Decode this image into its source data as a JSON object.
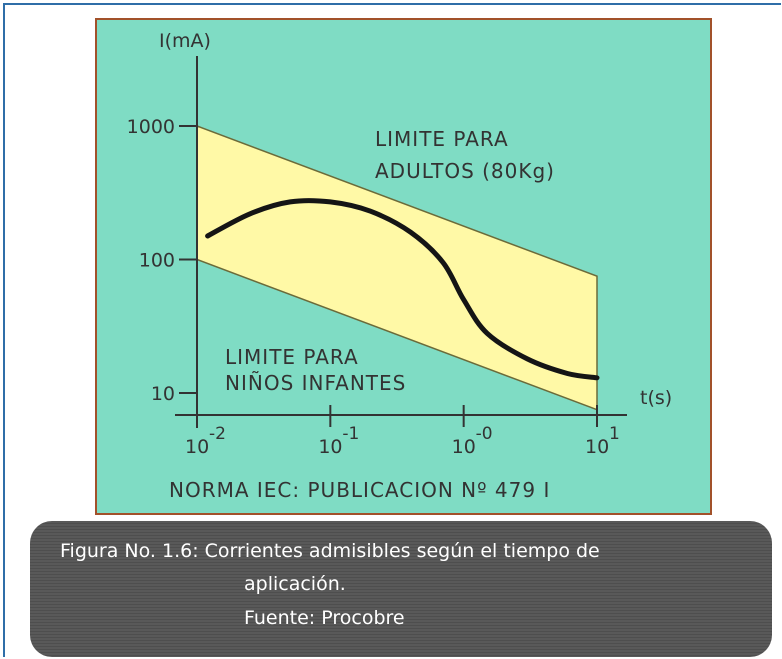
{
  "figure": {
    "caption_line1": "Figura No. 1.6: Corrientes admisibles según el tiempo de",
    "caption_line2": "aplicación.",
    "caption_line3": "Fuente: Procobre"
  },
  "chart_data": {
    "type": "area",
    "title": "",
    "xlabel": "t(s)",
    "ylabel": "I(mA)",
    "x_scale": "log",
    "y_scale": "log",
    "xlim": [
      0.01,
      10
    ],
    "ylim": [
      10,
      1000
    ],
    "x_ticks": [
      {
        "value": 0.01,
        "base": "10",
        "exp": "-2"
      },
      {
        "value": 0.1,
        "base": "10",
        "exp": "-1"
      },
      {
        "value": 1,
        "base": "10",
        "exp": "-0"
      },
      {
        "value": 10,
        "base": "10",
        "exp": "1"
      }
    ],
    "y_ticks": [
      {
        "value": 1000,
        "label": "1000"
      },
      {
        "value": 100,
        "label": "100"
      },
      {
        "value": 10,
        "label": "10"
      }
    ],
    "band": {
      "upper": {
        "x": [
          0.01,
          10
        ],
        "y": [
          1000,
          75
        ]
      },
      "lower": {
        "x": [
          0.01,
          10
        ],
        "y": [
          100,
          7.5
        ]
      }
    },
    "curve": {
      "x": [
        0.012,
        0.025,
        0.05,
        0.1,
        0.2,
        0.4,
        0.7,
        1.0,
        1.5,
        3,
        6,
        10
      ],
      "y": [
        150,
        220,
        270,
        270,
        230,
        160,
        95,
        50,
        28,
        18,
        14,
        13
      ]
    },
    "annotations": [
      {
        "line1": "LIMITE PARA",
        "line2": "ADULTOS (80Kg)"
      },
      {
        "line1": "LIMITE PARA",
        "line2": "NIÑOS INFANTES"
      }
    ],
    "footer": "NORMA IEC: PUBLICACION Nº 479 I",
    "colors": {
      "background": "#7fdcc4",
      "band": "#fff9a6",
      "band_edge": "#6b6b3a",
      "curve": "#151515",
      "border": "#a2512a"
    },
    "grid": false
  }
}
